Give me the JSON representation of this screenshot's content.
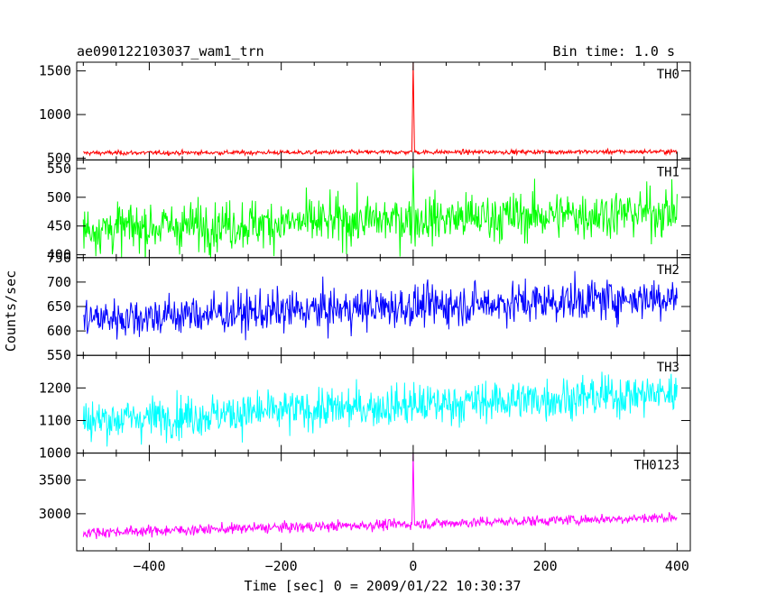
{
  "header": {
    "title": "ae090122103037_wam1_trn",
    "bin_time": "Bin time: 1.0 s"
  },
  "chart_data": {
    "type": "line",
    "ylabel": "Counts/sec",
    "xlabel": "Time [sec] 0 = 2009/01/22 10:30:37",
    "xlim": [
      -510,
      420
    ],
    "x_ticks": [
      -400,
      -200,
      0,
      200,
      400
    ],
    "x_tick_labels": [
      "−400",
      "−200",
      "0",
      "200",
      "400"
    ],
    "x_range": [
      -500,
      400
    ],
    "bin_time_s": 1.0,
    "panels": [
      {
        "name": "TH0",
        "color": "#ff0000",
        "ylim": [
          480,
          1600
        ],
        "yticks": [
          500,
          1000,
          1500
        ],
        "mean_start": 560,
        "mean_end": 575,
        "noise": 18,
        "burst": {
          "t": 0,
          "peak": 1600
        }
      },
      {
        "name": "TH1",
        "color": "#00ff00",
        "ylim": [
          395,
          565
        ],
        "yticks": [
          400,
          450,
          500,
          550
        ],
        "mean_start": 445,
        "mean_end": 475,
        "noise": 30,
        "burst": {
          "t": 0,
          "peak": 555
        }
      },
      {
        "name": "TH2",
        "color": "#0000ff",
        "ylim": [
          550,
          750
        ],
        "yticks": [
          550,
          600,
          650,
          700,
          750
        ],
        "mean_start": 625,
        "mean_end": 670,
        "noise": 30,
        "burst": null
      },
      {
        "name": "TH3",
        "color": "#00ffff",
        "ylim": [
          1000,
          1300
        ],
        "yticks": [
          1000,
          1100,
          1200
        ],
        "mean_start": 1100,
        "mean_end": 1185,
        "noise": 45,
        "burst": null
      },
      {
        "name": "TH0123",
        "color": "#ff00ff",
        "ylim": [
          2450,
          3900
        ],
        "yticks": [
          3000,
          3500
        ],
        "mean_start": 2720,
        "mean_end": 2950,
        "noise": 55,
        "burst": {
          "t": 0,
          "peak": 3900
        }
      }
    ]
  }
}
